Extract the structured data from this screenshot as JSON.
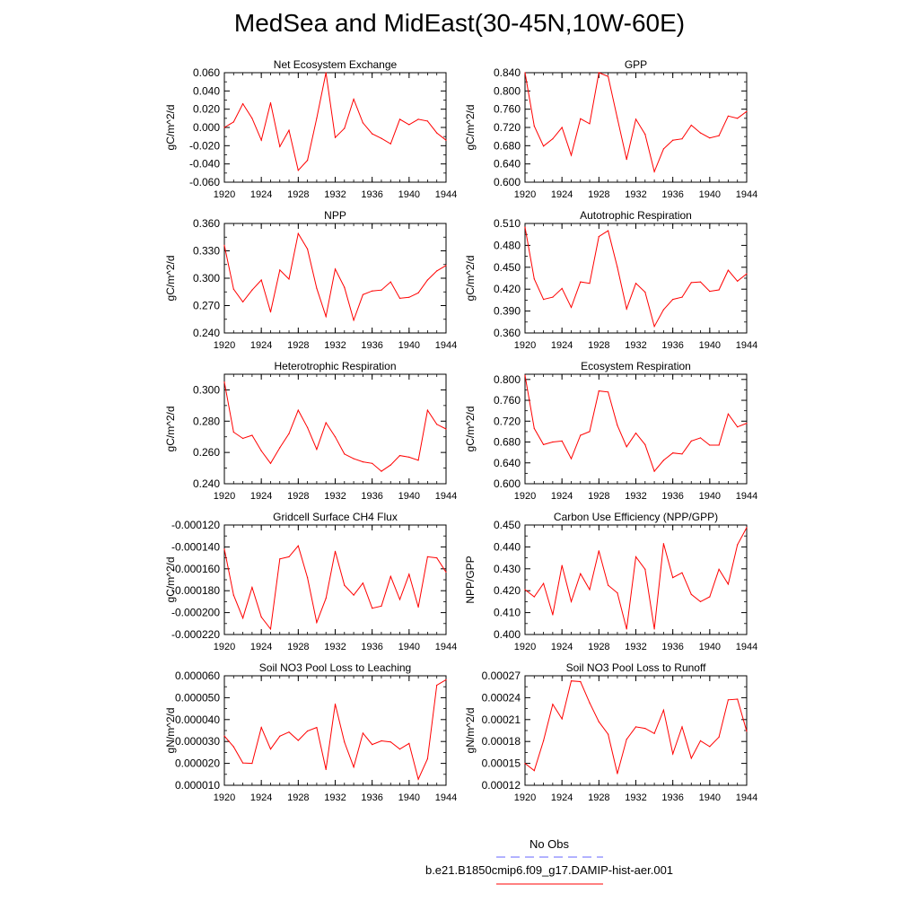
{
  "title": "MedSea and MidEast(30-45N,10W-60E)",
  "colors": {
    "model": "#ff0000",
    "obs": "#6666ff",
    "axis": "#000000"
  },
  "legend": {
    "obs_label": "No Obs",
    "model_label": "b.e21.B1850cmip6.f09_g17.DAMIP-hist-aer.001"
  },
  "chart_data": [
    {
      "type": "line",
      "title": "Net Ecosystem Exchange",
      "xlabel": "",
      "ylabel": "gC/m^2/d",
      "xlim": [
        1920,
        1944
      ],
      "ylim": [
        -0.06,
        0.06
      ],
      "xticks": [
        "1920",
        "1924",
        "1928",
        "1932",
        "1936",
        "1940",
        "1944"
      ],
      "yticks": [
        "-0.060",
        "-0.040",
        "-0.020",
        "0.000",
        "0.020",
        "0.040",
        "0.060"
      ],
      "x": [
        1920,
        1921,
        1922,
        1923,
        1924,
        1925,
        1926,
        1927,
        1928,
        1929,
        1930,
        1931,
        1932,
        1933,
        1934,
        1935,
        1936,
        1937,
        1938,
        1939,
        1940,
        1941,
        1942,
        1943,
        1944
      ],
      "values": [
        0.0,
        0.006,
        0.026,
        0.01,
        -0.014,
        0.027,
        -0.021,
        -0.003,
        -0.047,
        -0.036,
        0.01,
        0.06,
        -0.011,
        -0.001,
        0.031,
        0.005,
        -0.007,
        -0.012,
        -0.018,
        0.009,
        0.003,
        0.009,
        0.007,
        -0.006,
        -0.014
      ]
    },
    {
      "type": "line",
      "title": "GPP",
      "xlabel": "",
      "ylabel": "gC/m^2/d",
      "xlim": [
        1920,
        1944
      ],
      "ylim": [
        0.6,
        0.84
      ],
      "xticks": [
        "1920",
        "1924",
        "1928",
        "1932",
        "1936",
        "1940",
        "1944"
      ],
      "yticks": [
        "0.600",
        "0.640",
        "0.680",
        "0.720",
        "0.760",
        "0.800",
        "0.840"
      ],
      "x": [
        1920,
        1921,
        1922,
        1923,
        1924,
        1925,
        1926,
        1927,
        1928,
        1929,
        1930,
        1931,
        1932,
        1933,
        1934,
        1935,
        1936,
        1937,
        1938,
        1939,
        1940,
        1941,
        1942,
        1943,
        1944
      ],
      "values": [
        0.84,
        0.723,
        0.679,
        0.695,
        0.72,
        0.659,
        0.739,
        0.728,
        0.84,
        0.832,
        0.74,
        0.65,
        0.738,
        0.705,
        0.623,
        0.673,
        0.692,
        0.695,
        0.725,
        0.708,
        0.697,
        0.702,
        0.745,
        0.74,
        0.755
      ]
    },
    {
      "type": "line",
      "title": "NPP",
      "xlabel": "",
      "ylabel": "gC/m^2/d",
      "xlim": [
        1920,
        1944
      ],
      "ylim": [
        0.24,
        0.36
      ],
      "xticks": [
        "1920",
        "1924",
        "1928",
        "1932",
        "1936",
        "1940",
        "1944"
      ],
      "yticks": [
        "0.240",
        "0.270",
        "0.300",
        "0.330",
        "0.360"
      ],
      "x": [
        1920,
        1921,
        1922,
        1923,
        1924,
        1925,
        1926,
        1927,
        1928,
        1929,
        1930,
        1931,
        1932,
        1933,
        1934,
        1935,
        1936,
        1937,
        1938,
        1939,
        1940,
        1941,
        1942,
        1943,
        1944
      ],
      "values": [
        0.336,
        0.288,
        0.274,
        0.287,
        0.298,
        0.263,
        0.309,
        0.299,
        0.349,
        0.332,
        0.289,
        0.258,
        0.31,
        0.29,
        0.254,
        0.282,
        0.286,
        0.287,
        0.296,
        0.278,
        0.279,
        0.284,
        0.298,
        0.308,
        0.314
      ]
    },
    {
      "type": "line",
      "title": "Autotrophic Respiration",
      "xlabel": "",
      "ylabel": "gC/m^2/d",
      "xlim": [
        1920,
        1944
      ],
      "ylim": [
        0.36,
        0.51
      ],
      "xticks": [
        "1920",
        "1924",
        "1928",
        "1932",
        "1936",
        "1940",
        "1944"
      ],
      "yticks": [
        "0.360",
        "0.390",
        "0.420",
        "0.450",
        "0.480",
        "0.510"
      ],
      "x": [
        1920,
        1921,
        1922,
        1923,
        1924,
        1925,
        1926,
        1927,
        1928,
        1929,
        1930,
        1931,
        1932,
        1933,
        1934,
        1935,
        1936,
        1937,
        1938,
        1939,
        1940,
        1941,
        1942,
        1943,
        1944
      ],
      "values": [
        0.505,
        0.434,
        0.406,
        0.409,
        0.421,
        0.395,
        0.43,
        0.428,
        0.492,
        0.5,
        0.45,
        0.393,
        0.428,
        0.416,
        0.369,
        0.392,
        0.406,
        0.409,
        0.429,
        0.43,
        0.417,
        0.419,
        0.446,
        0.431,
        0.441
      ]
    },
    {
      "type": "line",
      "title": "Heterotrophic Respiration",
      "xlabel": "",
      "ylabel": "gC/m^2/d",
      "xlim": [
        1920,
        1944
      ],
      "ylim": [
        0.24,
        0.31
      ],
      "xticks": [
        "1920",
        "1924",
        "1928",
        "1932",
        "1936",
        "1940",
        "1944"
      ],
      "yticks": [
        "0.240",
        "0.260",
        "0.280",
        "0.300"
      ],
      "x": [
        1920,
        1921,
        1922,
        1923,
        1924,
        1925,
        1926,
        1927,
        1928,
        1929,
        1930,
        1931,
        1932,
        1933,
        1934,
        1935,
        1936,
        1937,
        1938,
        1939,
        1940,
        1941,
        1942,
        1943,
        1944
      ],
      "values": [
        0.305,
        0.273,
        0.269,
        0.271,
        0.261,
        0.253,
        0.263,
        0.272,
        0.287,
        0.276,
        0.262,
        0.279,
        0.27,
        0.259,
        0.256,
        0.254,
        0.253,
        0.248,
        0.252,
        0.258,
        0.257,
        0.255,
        0.287,
        0.278,
        0.275
      ]
    },
    {
      "type": "line",
      "title": "Ecosystem Respiration",
      "xlabel": "",
      "ylabel": "gC/m^2/d",
      "xlim": [
        1920,
        1944
      ],
      "ylim": [
        0.6,
        0.81
      ],
      "xticks": [
        "1920",
        "1924",
        "1928",
        "1932",
        "1936",
        "1940",
        "1944"
      ],
      "yticks": [
        "0.600",
        "0.640",
        "0.680",
        "0.720",
        "0.760",
        "0.800"
      ],
      "x": [
        1920,
        1921,
        1922,
        1923,
        1924,
        1925,
        1926,
        1927,
        1928,
        1929,
        1930,
        1931,
        1932,
        1933,
        1934,
        1935,
        1936,
        1937,
        1938,
        1939,
        1940,
        1941,
        1942,
        1943,
        1944
      ],
      "values": [
        0.808,
        0.706,
        0.675,
        0.68,
        0.682,
        0.648,
        0.693,
        0.7,
        0.778,
        0.776,
        0.712,
        0.671,
        0.697,
        0.675,
        0.624,
        0.645,
        0.659,
        0.657,
        0.682,
        0.688,
        0.674,
        0.674,
        0.734,
        0.709,
        0.716
      ]
    },
    {
      "type": "line",
      "title": "Gridcell Surface CH4 Flux",
      "xlabel": "",
      "ylabel": "gC/m^2/d",
      "xlim": [
        1920,
        1944
      ],
      "ylim": [
        -0.00022,
        -0.00012
      ],
      "xticks": [
        "1920",
        "1924",
        "1928",
        "1932",
        "1936",
        "1940",
        "1944"
      ],
      "yticks": [
        "-0.000220",
        "-0.000200",
        "-0.000180",
        "-0.000160",
        "-0.000140",
        "-0.000120"
      ],
      "x": [
        1920,
        1921,
        1922,
        1923,
        1924,
        1925,
        1926,
        1927,
        1928,
        1929,
        1930,
        1931,
        1932,
        1933,
        1934,
        1935,
        1936,
        1937,
        1938,
        1939,
        1940,
        1941,
        1942,
        1943,
        1944
      ],
      "values": [
        -0.000142,
        -0.000184,
        -0.000205,
        -0.000177,
        -0.000204,
        -0.000215,
        -0.000151,
        -0.000149,
        -0.000139,
        -0.000168,
        -0.000209,
        -0.000187,
        -0.000144,
        -0.000175,
        -0.000184,
        -0.000173,
        -0.000196,
        -0.000194,
        -0.000167,
        -0.000188,
        -0.000165,
        -0.000195,
        -0.000149,
        -0.00015,
        -0.000163
      ]
    },
    {
      "type": "line",
      "title": "Carbon Use Efficiency (NPP/GPP)",
      "xlabel": "",
      "ylabel": "NPP/GPP",
      "xlim": [
        1920,
        1944
      ],
      "ylim": [
        0.4,
        0.45
      ],
      "xticks": [
        "1920",
        "1924",
        "1928",
        "1932",
        "1936",
        "1940",
        "1944"
      ],
      "yticks": [
        "0.400",
        "0.410",
        "0.420",
        "0.430",
        "0.440",
        "0.450"
      ],
      "x": [
        1920,
        1921,
        1922,
        1923,
        1924,
        1925,
        1926,
        1927,
        1928,
        1929,
        1930,
        1931,
        1932,
        1933,
        1934,
        1935,
        1936,
        1937,
        1938,
        1939,
        1940,
        1941,
        1942,
        1943,
        1944
      ],
      "values": [
        0.4205,
        0.4172,
        0.4233,
        0.409,
        0.4315,
        0.415,
        0.4278,
        0.4205,
        0.4382,
        0.4225,
        0.419,
        0.4025,
        0.4355,
        0.4298,
        0.4025,
        0.4415,
        0.426,
        0.4282,
        0.4183,
        0.415,
        0.4172,
        0.4298,
        0.423,
        0.441,
        0.4488
      ]
    },
    {
      "type": "line",
      "title": "Soil NO3 Pool Loss to Leaching",
      "xlabel": "",
      "ylabel": "gN/m^2/d",
      "xlim": [
        1920,
        1944
      ],
      "ylim": [
        1e-05,
        6e-05
      ],
      "xticks": [
        "1920",
        "1924",
        "1928",
        "1932",
        "1936",
        "1940",
        "1944"
      ],
      "yticks": [
        "0.000010",
        "0.000020",
        "0.000030",
        "0.000040",
        "0.000050",
        "0.000060"
      ],
      "x": [
        1920,
        1921,
        1922,
        1923,
        1924,
        1925,
        1926,
        1927,
        1928,
        1929,
        1930,
        1931,
        1932,
        1933,
        1934,
        1935,
        1936,
        1937,
        1938,
        1939,
        1940,
        1941,
        1942,
        1943,
        1944
      ],
      "values": [
        3.25e-05,
        2.76e-05,
        2.02e-05,
        2e-05,
        3.64e-05,
        2.65e-05,
        3.24e-05,
        3.43e-05,
        3.05e-05,
        3.48e-05,
        3.64e-05,
        1.72e-05,
        4.71e-05,
        2.97e-05,
        1.83e-05,
        3.38e-05,
        2.86e-05,
        3.03e-05,
        2.98e-05,
        2.65e-05,
        2.91e-05,
        1.28e-05,
        2.21e-05,
        5.57e-05,
        5.82e-05
      ]
    },
    {
      "type": "line",
      "title": "Soil NO3 Pool Loss to Runoff",
      "xlabel": "",
      "ylabel": "gN/m^2/d",
      "xlim": [
        1920,
        1944
      ],
      "ylim": [
        0.00012,
        0.00027
      ],
      "xticks": [
        "1920",
        "1924",
        "1928",
        "1932",
        "1936",
        "1940",
        "1944"
      ],
      "yticks": [
        "0.00012",
        "0.00015",
        "0.00018",
        "0.00021",
        "0.00024",
        "0.00027"
      ],
      "x": [
        1920,
        1921,
        1922,
        1923,
        1924,
        1925,
        1926,
        1927,
        1928,
        1929,
        1930,
        1931,
        1932,
        1933,
        1934,
        1935,
        1936,
        1937,
        1938,
        1939,
        1940,
        1941,
        1942,
        1943,
        1944
      ],
      "values": [
        0.00015,
        0.00014,
        0.000181,
        0.000231,
        0.000211,
        0.000263,
        0.000262,
        0.000233,
        0.000207,
        0.00019,
        0.000136,
        0.000183,
        0.0002,
        0.000198,
        0.000191,
        0.000223,
        0.000163,
        0.0002,
        0.000157,
        0.000181,
        0.000173,
        0.000186,
        0.000237,
        0.000238,
        0.000194
      ]
    }
  ]
}
